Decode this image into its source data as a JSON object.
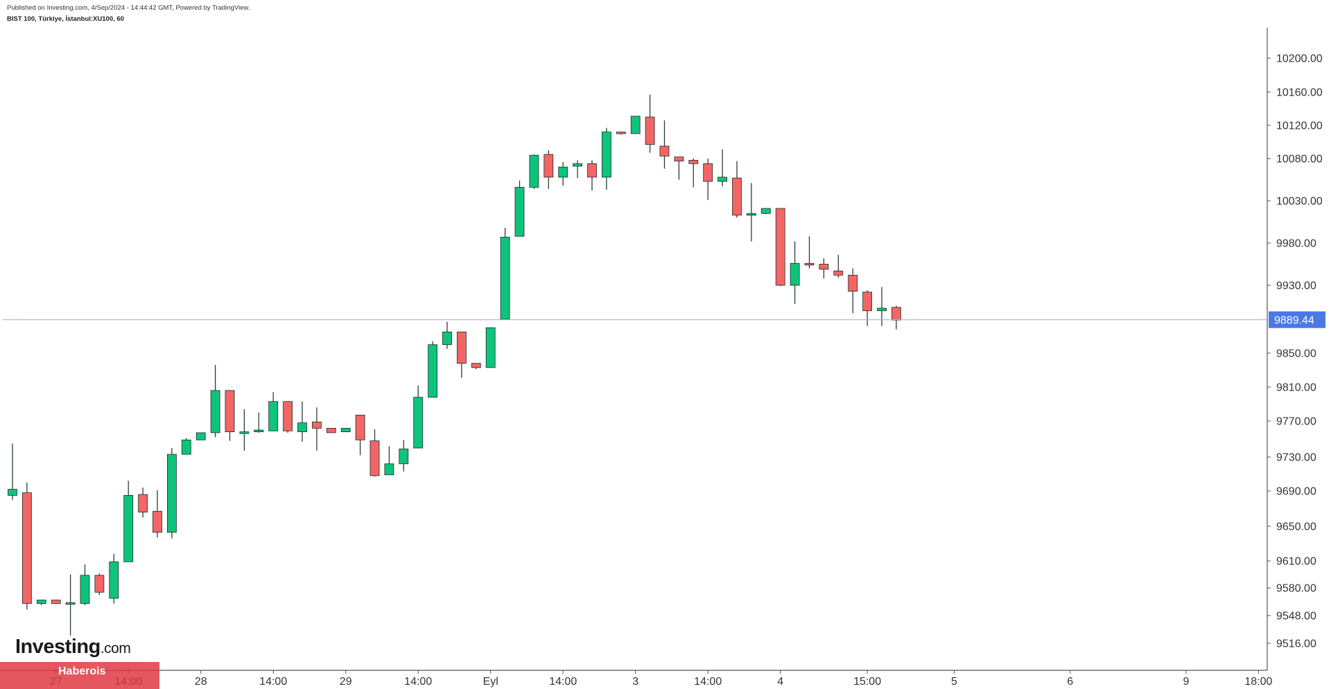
{
  "header": {
    "published": "Published on Investing.com, 4/Sep/2024 - 14:44:42 GMT, Powered by TradingView.",
    "symbol": "BIST 100, Türkiye, İstanbul:XU100, 60"
  },
  "logo": {
    "main": "Investing",
    "suffix": ".com"
  },
  "badge": {
    "label": "Haberois"
  },
  "colors": {
    "up": "#0ec47c",
    "down": "#f26666",
    "wick": "#2d3a33",
    "price_line": "#9fb4e6",
    "price_label_bg": "#4a78e8",
    "axis_line": "#555555"
  },
  "chart_data": {
    "type": "candlestick",
    "y_axis": {
      "ticks": [
        {
          "value": 10200,
          "label": "10200.00"
        },
        {
          "value": 10160,
          "label": "10160.00"
        },
        {
          "value": 10120,
          "label": "10120.00"
        },
        {
          "value": 10080,
          "label": "10080.00"
        },
        {
          "value": 10030,
          "label": "10030.00"
        },
        {
          "value": 9980,
          "label": "9980.00"
        },
        {
          "value": 9930,
          "label": "9930.00"
        },
        {
          "value": 9850,
          "label": "9850.00"
        },
        {
          "value": 9810,
          "label": "9810.00"
        },
        {
          "value": 9770,
          "label": "9770.00"
        },
        {
          "value": 9730,
          "label": "9730.00"
        },
        {
          "value": 9690,
          "label": "9690.00"
        },
        {
          "value": 9650,
          "label": "9650.00"
        },
        {
          "value": 9610,
          "label": "9610.00"
        },
        {
          "value": 9580,
          "label": "9580.00"
        },
        {
          "value": 9548,
          "label": "9548.00"
        },
        {
          "value": 9516,
          "label": "9516.00"
        }
      ]
    },
    "x_axis": {
      "ticks": [
        {
          "index": 3,
          "label": "27"
        },
        {
          "index": 8,
          "label": "14:00"
        },
        {
          "index": 13,
          "label": "28"
        },
        {
          "index": 18,
          "label": "14:00"
        },
        {
          "index": 23,
          "label": "29"
        },
        {
          "index": 28,
          "label": "14:00"
        },
        {
          "index": 33,
          "label": "Eyl"
        },
        {
          "index": 38,
          "label": "14:00"
        },
        {
          "index": 43,
          "label": "3"
        },
        {
          "index": 48,
          "label": "14:00"
        },
        {
          "index": 53,
          "label": "4"
        },
        {
          "index": 59,
          "label": "15:00"
        },
        {
          "index": 65,
          "label": "5"
        },
        {
          "index": 73,
          "label": "6"
        },
        {
          "index": 81,
          "label": "9"
        },
        {
          "index": 86,
          "label": "18:00"
        }
      ]
    },
    "last_price": {
      "value": 9889.44,
      "label": "9889.44"
    },
    "candles": [
      {
        "o": 9685,
        "h": 9745,
        "l": 9680,
        "c": 9692
      },
      {
        "o": 9688,
        "h": 9700,
        "l": 9555,
        "c": 9562
      },
      {
        "o": 9562,
        "h": 9566,
        "l": 9560,
        "c": 9566
      },
      {
        "o": 9566,
        "h": 9566,
        "l": 9562,
        "c": 9562
      },
      {
        "o": 9563,
        "h": 9595,
        "l": 9525,
        "c": 9563
      },
      {
        "o": 9562,
        "h": 9606,
        "l": 9560,
        "c": 9594
      },
      {
        "o": 9594,
        "h": 9596,
        "l": 9572,
        "c": 9575
      },
      {
        "o": 9568,
        "h": 9618,
        "l": 9562,
        "c": 9609
      },
      {
        "o": 9609,
        "h": 9702,
        "l": 9609,
        "c": 9685
      },
      {
        "o": 9686,
        "h": 9694,
        "l": 9660,
        "c": 9666
      },
      {
        "o": 9667,
        "h": 9691,
        "l": 9637,
        "c": 9643
      },
      {
        "o": 9643,
        "h": 9740,
        "l": 9636,
        "c": 9733
      },
      {
        "o": 9733,
        "h": 9751,
        "l": 9733,
        "c": 9749
      },
      {
        "o": 9749,
        "h": 9757,
        "l": 9749,
        "c": 9757
      },
      {
        "o": 9757,
        "h": 9836,
        "l": 9752,
        "c": 9806
      },
      {
        "o": 9806,
        "h": 9806,
        "l": 9748,
        "c": 9758
      },
      {
        "o": 9757,
        "h": 9784,
        "l": 9737,
        "c": 9758
      },
      {
        "o": 9758,
        "h": 9780,
        "l": 9757,
        "c": 9760
      },
      {
        "o": 9759,
        "h": 9804,
        "l": 9759,
        "c": 9793
      },
      {
        "o": 9793,
        "h": 9793,
        "l": 9757,
        "c": 9759
      },
      {
        "o": 9758,
        "h": 9793,
        "l": 9747,
        "c": 9768
      },
      {
        "o": 9769,
        "h": 9786,
        "l": 9737,
        "c": 9762
      },
      {
        "o": 9762,
        "h": 9762,
        "l": 9757,
        "c": 9757
      },
      {
        "o": 9758,
        "h": 9762,
        "l": 9758,
        "c": 9762
      },
      {
        "o": 9777,
        "h": 9777,
        "l": 9732,
        "c": 9749
      },
      {
        "o": 9748,
        "h": 9761,
        "l": 9707,
        "c": 9708
      },
      {
        "o": 9709,
        "h": 9742,
        "l": 9709,
        "c": 9722
      },
      {
        "o": 9722,
        "h": 9749,
        "l": 9713,
        "c": 9739
      },
      {
        "o": 9740,
        "h": 9812,
        "l": 9740,
        "c": 9798
      },
      {
        "o": 9798,
        "h": 9864,
        "l": 9798,
        "c": 9860
      },
      {
        "o": 9860,
        "h": 9887,
        "l": 9855,
        "c": 9875
      },
      {
        "o": 9875,
        "h": 9875,
        "l": 9821,
        "c": 9838
      },
      {
        "o": 9838,
        "h": 9838,
        "l": 9831,
        "c": 9833
      },
      {
        "o": 9833,
        "h": 9880,
        "l": 9833,
        "c": 9880
      },
      {
        "o": 9890,
        "h": 9998,
        "l": 9890,
        "c": 9987
      },
      {
        "o": 9988,
        "h": 10054,
        "l": 9988,
        "c": 10046
      },
      {
        "o": 10046,
        "h": 10085,
        "l": 10044,
        "c": 10084
      },
      {
        "o": 10085,
        "h": 10090,
        "l": 10044,
        "c": 10058
      },
      {
        "o": 10058,
        "h": 10076,
        "l": 10048,
        "c": 10070
      },
      {
        "o": 10071,
        "h": 10078,
        "l": 10057,
        "c": 10074
      },
      {
        "o": 10074,
        "h": 10078,
        "l": 10042,
        "c": 10058
      },
      {
        "o": 10058,
        "h": 10117,
        "l": 10043,
        "c": 10112
      },
      {
        "o": 10112,
        "h": 10112,
        "l": 10109,
        "c": 10110
      },
      {
        "o": 10110,
        "h": 10131,
        "l": 10110,
        "c": 10131
      },
      {
        "o": 10130,
        "h": 10157,
        "l": 10087,
        "c": 10097
      },
      {
        "o": 10095,
        "h": 10126,
        "l": 10068,
        "c": 10083
      },
      {
        "o": 10082,
        "h": 10082,
        "l": 10055,
        "c": 10077
      },
      {
        "o": 10078,
        "h": 10080,
        "l": 10046,
        "c": 10074
      },
      {
        "o": 10074,
        "h": 10080,
        "l": 10031,
        "c": 10053
      },
      {
        "o": 10053,
        "h": 10091,
        "l": 10047,
        "c": 10058
      },
      {
        "o": 10057,
        "h": 10077,
        "l": 10010,
        "c": 10013
      },
      {
        "o": 10015,
        "h": 10051,
        "l": 9982,
        "c": 10015
      },
      {
        "o": 10015,
        "h": 10021,
        "l": 10014,
        "c": 10021
      },
      {
        "o": 10021,
        "h": 10021,
        "l": 9929,
        "c": 9930
      },
      {
        "o": 9930,
        "h": 9982,
        "l": 9908,
        "c": 9956
      },
      {
        "o": 9956,
        "h": 9988,
        "l": 9950,
        "c": 9954
      },
      {
        "o": 9955,
        "h": 9962,
        "l": 9938,
        "c": 9949
      },
      {
        "o": 9947,
        "h": 9966,
        "l": 9939,
        "c": 9942
      },
      {
        "o": 9942,
        "h": 9950,
        "l": 9897,
        "c": 9923
      },
      {
        "o": 9922,
        "h": 9924,
        "l": 9882,
        "c": 9900
      },
      {
        "o": 9900,
        "h": 9928,
        "l": 9882,
        "c": 9903
      },
      {
        "o": 9904,
        "h": 9906,
        "l": 9878,
        "c": 9889
      }
    ]
  }
}
